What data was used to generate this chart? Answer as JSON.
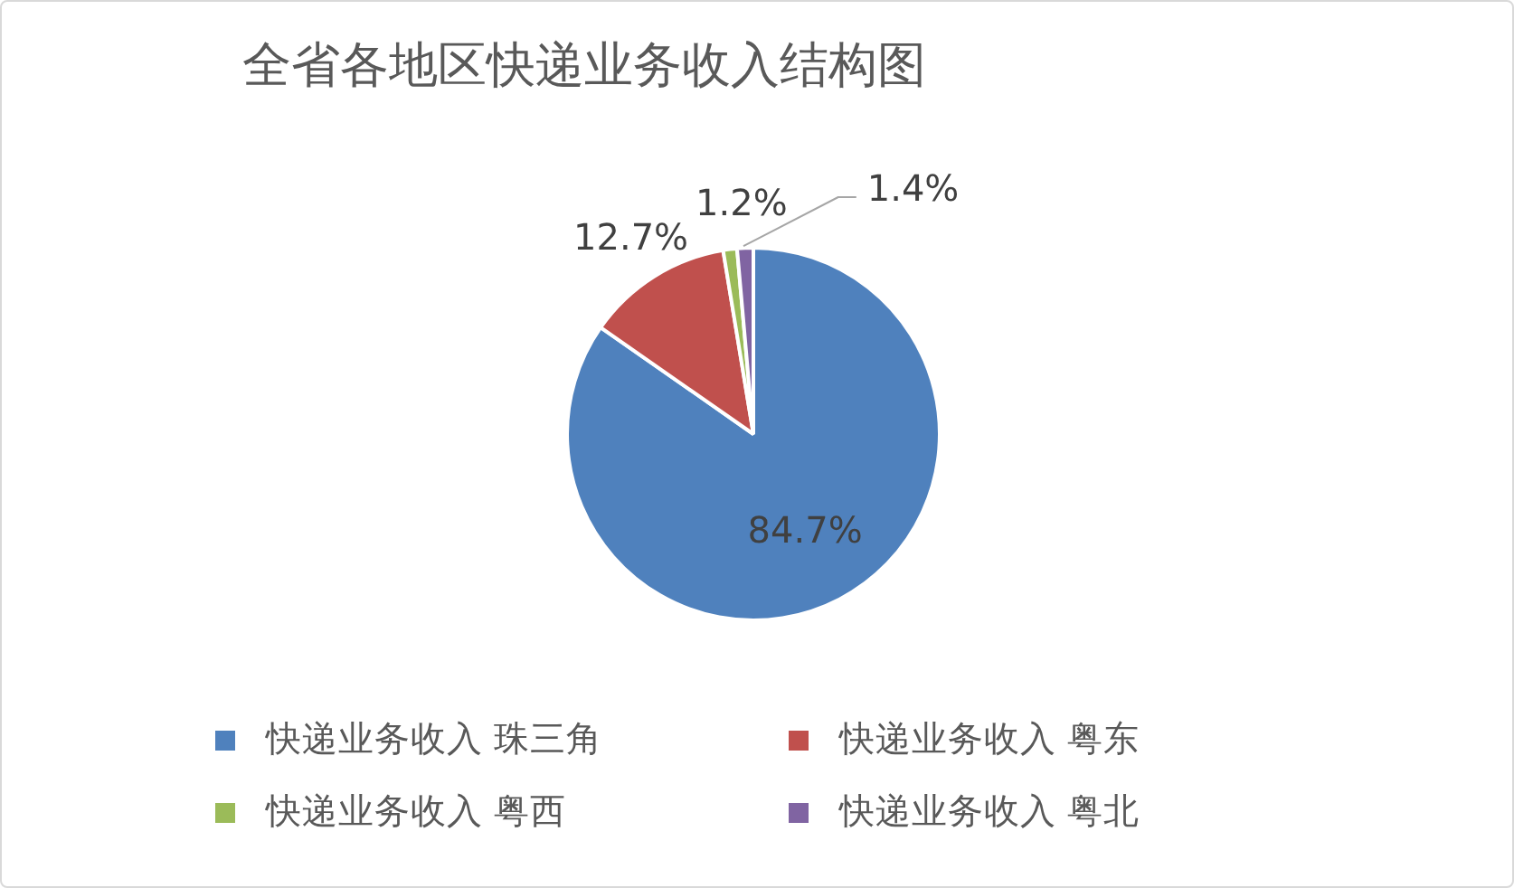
{
  "chart_data": {
    "type": "pie",
    "title": "全省各地区快递业务收入结构图",
    "categories": [
      "快递业务收入 珠三角",
      "快递业务收入 粤东",
      "快递业务收入 粤西",
      "快递业务收入 粤北"
    ],
    "values": [
      84.7,
      12.7,
      1.2,
      1.4
    ],
    "colors": [
      "#4f81bd",
      "#c0504d",
      "#9bbb59",
      "#8064a2"
    ],
    "value_labels": [
      "84.7%",
      "12.7%",
      "1.2%",
      "1.4%"
    ],
    "legend": "bottom"
  }
}
